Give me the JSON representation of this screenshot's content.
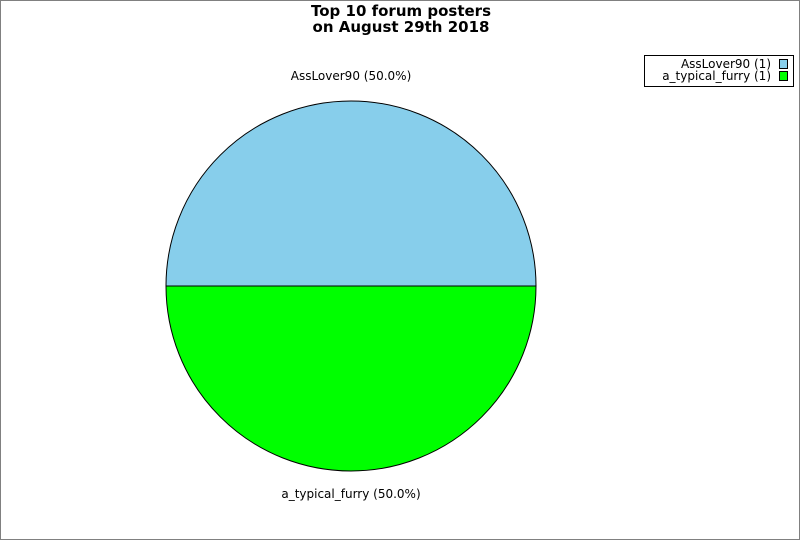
{
  "chart_data": {
    "type": "pie",
    "title": [
      "Top 10 forum posters",
      "on August 29th 2018"
    ],
    "slices": [
      {
        "label": "AssLover90",
        "value": 1,
        "percent_label": "AssLover90 (50.0%)",
        "legend_label": "AssLover90 (1)",
        "color": "#87ceeb"
      },
      {
        "label": "a_typical_furry",
        "value": 1,
        "percent_label": "a_typical_furry (50.0%)",
        "legend_label": "a_typical_furry (1)",
        "color": "#00ff00"
      }
    ],
    "legend_position": "top-right"
  }
}
